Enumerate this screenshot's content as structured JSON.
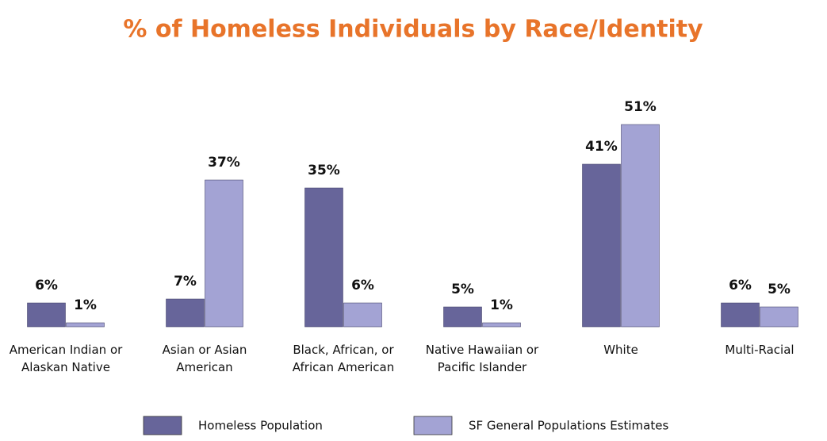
{
  "chart_data": {
    "type": "bar",
    "title": "% of Homeless Individuals by Race/Identity",
    "categories": [
      "American Indian or Alaskan Native",
      "Asian or Asian American",
      "Black, African, or African American",
      "Native Hawaiian or Pacific Islander",
      "White",
      "Multi-Racial"
    ],
    "series": [
      {
        "name": "Homeless Population",
        "color": "#67659a",
        "values": [
          6,
          7,
          35,
          5,
          41,
          6
        ],
        "value_labels": [
          "6%",
          "7%",
          "35%",
          "5%",
          "41%",
          "6%"
        ]
      },
      {
        "name": "SF General Populations Estimates",
        "color": "#a3a3d4",
        "values": [
          1,
          37,
          6,
          1,
          51,
          5
        ],
        "value_labels": [
          "1%",
          "37%",
          "6%",
          "1%",
          "51%",
          "5%"
        ]
      }
    ]
  }
}
